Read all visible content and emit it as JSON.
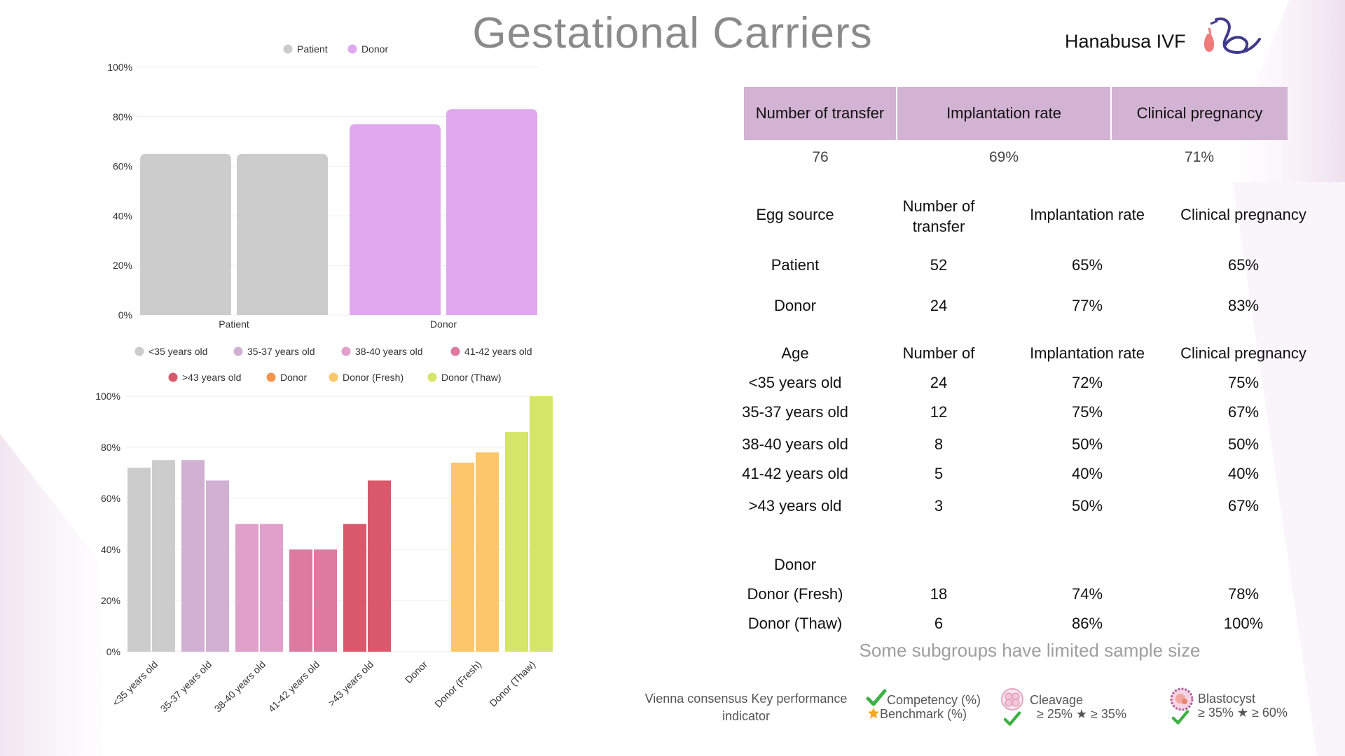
{
  "title": "Gestational Carriers",
  "brand": "Hanabusa IVF",
  "colors": {
    "patient": "#cccccc",
    "donor": "#e0a8ee",
    "header_bg": "#d3b3d3",
    "lt35": "#cccccc",
    "age35_37": "#d1b0d4",
    "age38_40": "#e0a0cc",
    "age41_42": "#dc7aa0",
    "gt43": "#d9586c",
    "donor_orange": "#f6934f",
    "donor_fresh": "#fbc768",
    "donor_thaw": "#d4e668",
    "check_green": "#3cb043",
    "star_orange": "#f5a623"
  },
  "chart_data": [
    {
      "type": "bar",
      "legend": [
        "Patient",
        "Donor"
      ],
      "categories": [
        "Patient",
        "Donor"
      ],
      "series": [
        {
          "name": "Implantation rate",
          "values": [
            65,
            77
          ]
        },
        {
          "name": "Clinical pregnancy",
          "values": [
            65,
            83
          ]
        }
      ],
      "ylim": [
        0,
        100
      ],
      "yticks": [
        "0%",
        "20%",
        "40%",
        "60%",
        "80%",
        "100%"
      ],
      "grid": true
    },
    {
      "type": "bar",
      "legend": [
        "<35 years old",
        "35-37 years old",
        "38-40 years old",
        "41-42 years old",
        ">43 years old",
        "Donor",
        "Donor (Fresh)",
        "Donor (Thaw)"
      ],
      "categories": [
        "<35 years old",
        "35-37 years old",
        "38-40 years old",
        "41-42 years old",
        ">43 years old",
        "Donor",
        "Donor (Fresh)",
        "Donor (Thaw)"
      ],
      "series": [
        {
          "name": "Implantation rate",
          "values": [
            72,
            75,
            50,
            40,
            50,
            null,
            74,
            86
          ]
        },
        {
          "name": "Clinical pregnancy",
          "values": [
            75,
            67,
            50,
            40,
            67,
            null,
            78,
            100
          ]
        }
      ],
      "ylim": [
        0,
        100
      ],
      "yticks": [
        "0%",
        "20%",
        "40%",
        "60%",
        "80%",
        "100%"
      ],
      "grid": true
    }
  ],
  "top_table": {
    "headers": [
      "Number of transfer",
      "Implantation rate",
      "Clinical pregnancy"
    ],
    "values": [
      "76",
      "69%",
      "71%"
    ]
  },
  "egg_table": {
    "headers": [
      "Egg source",
      "Number of\ntransfer",
      "Implantation rate",
      "Clinical pregnancy"
    ],
    "rows": [
      [
        "Patient",
        "52",
        "65%",
        "65%"
      ],
      [
        "Donor",
        "24",
        "77%",
        "83%"
      ]
    ]
  },
  "age_table": {
    "headers": [
      "Age",
      "Number of",
      "Implantation rate",
      "Clinical pregnancy"
    ],
    "rows": [
      [
        "<35 years old",
        "24",
        "72%",
        "75%"
      ],
      [
        "35-37 years old",
        "12",
        "75%",
        "67%"
      ],
      [
        "38-40 years old",
        "8",
        "50%",
        "50%"
      ],
      [
        "41-42 years old",
        "5",
        "40%",
        "40%"
      ],
      [
        ">43 years old",
        "3",
        "50%",
        "67%"
      ]
    ]
  },
  "donor_table": {
    "header": "Donor",
    "rows": [
      [
        "Donor (Fresh)",
        "18",
        "74%",
        "78%"
      ],
      [
        "Donor (Thaw)",
        "6",
        "86%",
        "100%"
      ]
    ]
  },
  "note": "Some subgroups have limited sample size",
  "kpi": {
    "label_line1": "Vienna consensus Key performance",
    "label_line2": "indicator",
    "competency": "Competency (%)",
    "benchmark": "Benchmark     (%)",
    "cleavage": "Cleavage",
    "cleavage_values": "≥ 25% ★ ≥ 35%",
    "blastocyst": "Blastocyst",
    "blastocyst_values": "≥ 35% ★ ≥ 60%"
  }
}
